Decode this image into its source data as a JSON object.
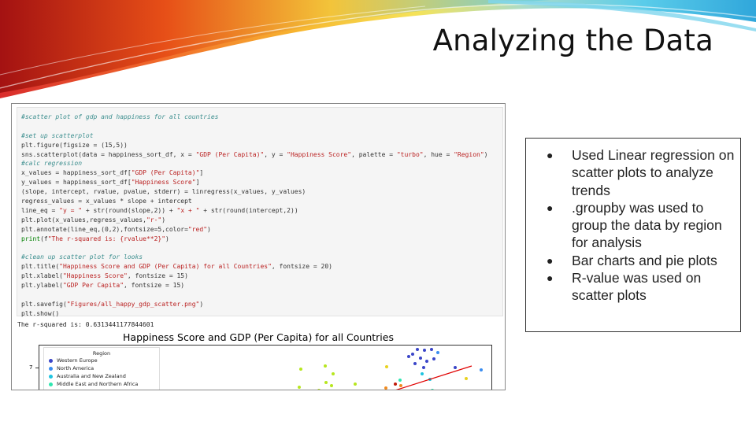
{
  "slide": {
    "title": "Analyzing the Data"
  },
  "notebook": {
    "code_lines": [
      {
        "segments": [
          {
            "t": "#scatter plot of gdp and happiness for all countries",
            "c": "cm"
          }
        ]
      },
      {
        "segments": []
      },
      {
        "segments": [
          {
            "t": "#set up scatterplot",
            "c": "cm"
          }
        ]
      },
      {
        "segments": [
          {
            "t": "plt.figure(figsize = (15,5))",
            "c": ""
          }
        ]
      },
      {
        "segments": [
          {
            "t": "sns.scatterplot(data = happiness_sort_df, x = ",
            "c": ""
          },
          {
            "t": "\"GDP (Per Capita)\"",
            "c": "st"
          },
          {
            "t": ", y = ",
            "c": ""
          },
          {
            "t": "\"Happiness Score\"",
            "c": "st"
          },
          {
            "t": ", palette = ",
            "c": ""
          },
          {
            "t": "\"turbo\"",
            "c": "st"
          },
          {
            "t": ", hue = ",
            "c": ""
          },
          {
            "t": "\"Region\"",
            "c": "st"
          },
          {
            "t": ")",
            "c": ""
          }
        ]
      },
      {
        "segments": [
          {
            "t": "#calc regression",
            "c": "cm"
          }
        ]
      },
      {
        "segments": [
          {
            "t": "x_values = happiness_sort_df[",
            "c": ""
          },
          {
            "t": "\"GDP (Per Capita)\"",
            "c": "st"
          },
          {
            "t": "]",
            "c": ""
          }
        ]
      },
      {
        "segments": [
          {
            "t": "y_values = happiness_sort_df[",
            "c": ""
          },
          {
            "t": "\"Happiness Score\"",
            "c": "st"
          },
          {
            "t": "]",
            "c": ""
          }
        ]
      },
      {
        "segments": [
          {
            "t": "(slope, intercept, rvalue, pvalue, stderr) = linregress(x_values, y_values)",
            "c": ""
          }
        ]
      },
      {
        "segments": [
          {
            "t": "regress_values = x_values * slope + intercept",
            "c": ""
          }
        ]
      },
      {
        "segments": [
          {
            "t": "line_eq = ",
            "c": ""
          },
          {
            "t": "\"y = \"",
            "c": "st"
          },
          {
            "t": " + str(round(slope,2)) + ",
            "c": ""
          },
          {
            "t": "\"x + \"",
            "c": "st"
          },
          {
            "t": " + str(round(intercept,2))",
            "c": ""
          }
        ]
      },
      {
        "segments": [
          {
            "t": "plt.plot(x_values,regress_values,",
            "c": ""
          },
          {
            "t": "\"r-\"",
            "c": "st"
          },
          {
            "t": ")",
            "c": ""
          }
        ]
      },
      {
        "segments": [
          {
            "t": "plt.annotate(line_eq,(0,2),fontsize=5,color=",
            "c": ""
          },
          {
            "t": "\"red\"",
            "c": "st"
          },
          {
            "t": ")",
            "c": ""
          }
        ]
      },
      {
        "segments": [
          {
            "t": "print",
            "c": "kw"
          },
          {
            "t": "(f",
            "c": ""
          },
          {
            "t": "\"The r-squared is: {rvalue**2}\"",
            "c": "st"
          },
          {
            "t": ")",
            "c": ""
          }
        ]
      },
      {
        "segments": []
      },
      {
        "segments": [
          {
            "t": "#clean up scatter plot for looks",
            "c": "cm"
          }
        ]
      },
      {
        "segments": [
          {
            "t": "plt.title(",
            "c": ""
          },
          {
            "t": "\"Happiness Score and GDP (Per Capita) for all Countries\"",
            "c": "st"
          },
          {
            "t": ", fontsize = 20)",
            "c": ""
          }
        ]
      },
      {
        "segments": [
          {
            "t": "plt.xlabel(",
            "c": ""
          },
          {
            "t": "\"Happiness Score\"",
            "c": "st"
          },
          {
            "t": ", fontsize = 15)",
            "c": ""
          }
        ]
      },
      {
        "segments": [
          {
            "t": "plt.ylabel(",
            "c": ""
          },
          {
            "t": "\"GDP Per Capita\"",
            "c": "st"
          },
          {
            "t": ", fontsize = 15)",
            "c": ""
          }
        ]
      },
      {
        "segments": []
      },
      {
        "segments": [
          {
            "t": "plt.savefig(",
            "c": ""
          },
          {
            "t": "\"Figures/all_happy_gdp_scatter.png\"",
            "c": "st"
          },
          {
            "t": ")",
            "c": ""
          }
        ]
      },
      {
        "segments": [
          {
            "t": "plt.show()",
            "c": ""
          }
        ]
      }
    ],
    "output_text": "The r-squared is: 0.6313441177844601"
  },
  "plot": {
    "title": "Happiness Score and GDP (Per Capita) for all Countries",
    "y_tick": "7",
    "legend": {
      "title": "Region",
      "items": [
        {
          "label": "Western Europe",
          "color": "#3a45c8"
        },
        {
          "label": "North America",
          "color": "#3a8df0"
        },
        {
          "label": "Australia and New Zealand",
          "color": "#1fc4e0"
        },
        {
          "label": "Middle East and Northern Africa",
          "color": "#2ee6b0"
        }
      ]
    },
    "points": [
      {
        "c": "#3a45c8"
      },
      {
        "c": "#3a45c8"
      },
      {
        "c": "#3a45c8"
      },
      {
        "c": "#3a45c8"
      },
      {
        "c": "#3a45c8"
      },
      {
        "c": "#3a45c8"
      },
      {
        "c": "#3a45c8"
      },
      {
        "c": "#3a45c8"
      },
      {
        "c": "#3a45c8"
      },
      {
        "c": "#3a45c8"
      },
      {
        "c": "#3a8df0"
      },
      {
        "c": "#3a8df0"
      },
      {
        "c": "#1fc4e0"
      },
      {
        "c": "#1fc4e0"
      },
      {
        "c": "#2ee6b0"
      },
      {
        "c": "#2ee6b0"
      },
      {
        "c": "#b7e61f"
      },
      {
        "c": "#b7e61f"
      },
      {
        "c": "#b7e61f"
      },
      {
        "c": "#b7e61f"
      },
      {
        "c": "#b7e61f"
      },
      {
        "c": "#b7e61f"
      },
      {
        "c": "#b7e61f"
      },
      {
        "c": "#b7e61f"
      },
      {
        "c": "#b7e61f"
      },
      {
        "c": "#e8d21f"
      },
      {
        "c": "#e8d21f"
      },
      {
        "c": "#f08a1f"
      },
      {
        "c": "#f08a1f"
      },
      {
        "c": "#c01a0a"
      },
      {
        "c": "#c01a0a"
      },
      {
        "c": "#3a45c8"
      }
    ],
    "regression_color": "#e00000"
  },
  "bullets": {
    "items": [
      "Used Linear regression on scatter plots to analyze trends",
      ".groupby was used to group the data by region for analysis",
      "Bar charts and pie plots",
      "R-value was used on scatter plots"
    ]
  }
}
